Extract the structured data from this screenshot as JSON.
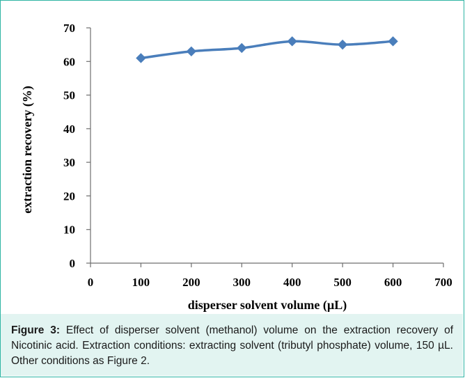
{
  "chart_data": {
    "type": "line",
    "x": [
      100,
      200,
      300,
      400,
      500,
      600
    ],
    "series": [
      {
        "values": [
          61,
          63,
          64,
          66,
          65,
          66
        ],
        "color": "#4a7ebb",
        "marker": "diamond"
      }
    ],
    "xlabel": "disperser solvent volume (µL)",
    "ylabel": "extraction recovery (%)",
    "xlim": [
      0,
      700
    ],
    "ylim": [
      0,
      70
    ],
    "xticks": [
      "0",
      "100",
      "200",
      "300",
      "400",
      "500",
      "600",
      "700"
    ],
    "yticks": [
      "0",
      "10",
      "20",
      "30",
      "40",
      "50",
      "60",
      "70"
    ],
    "grid": false,
    "legend": "none"
  },
  "caption": {
    "label": "Figure 3:",
    "text": " Effect of disperser solvent (methanol) volume on the extraction recovery of Nicotinic acid. Extraction conditions: extracting solvent (tributyl phosphate) volume, 150 µL. Other conditions as Figure 2."
  },
  "colors": {
    "line": "#4a7ebb",
    "border": "#2fb5a4",
    "caption_bg": "#e2f4f1"
  }
}
